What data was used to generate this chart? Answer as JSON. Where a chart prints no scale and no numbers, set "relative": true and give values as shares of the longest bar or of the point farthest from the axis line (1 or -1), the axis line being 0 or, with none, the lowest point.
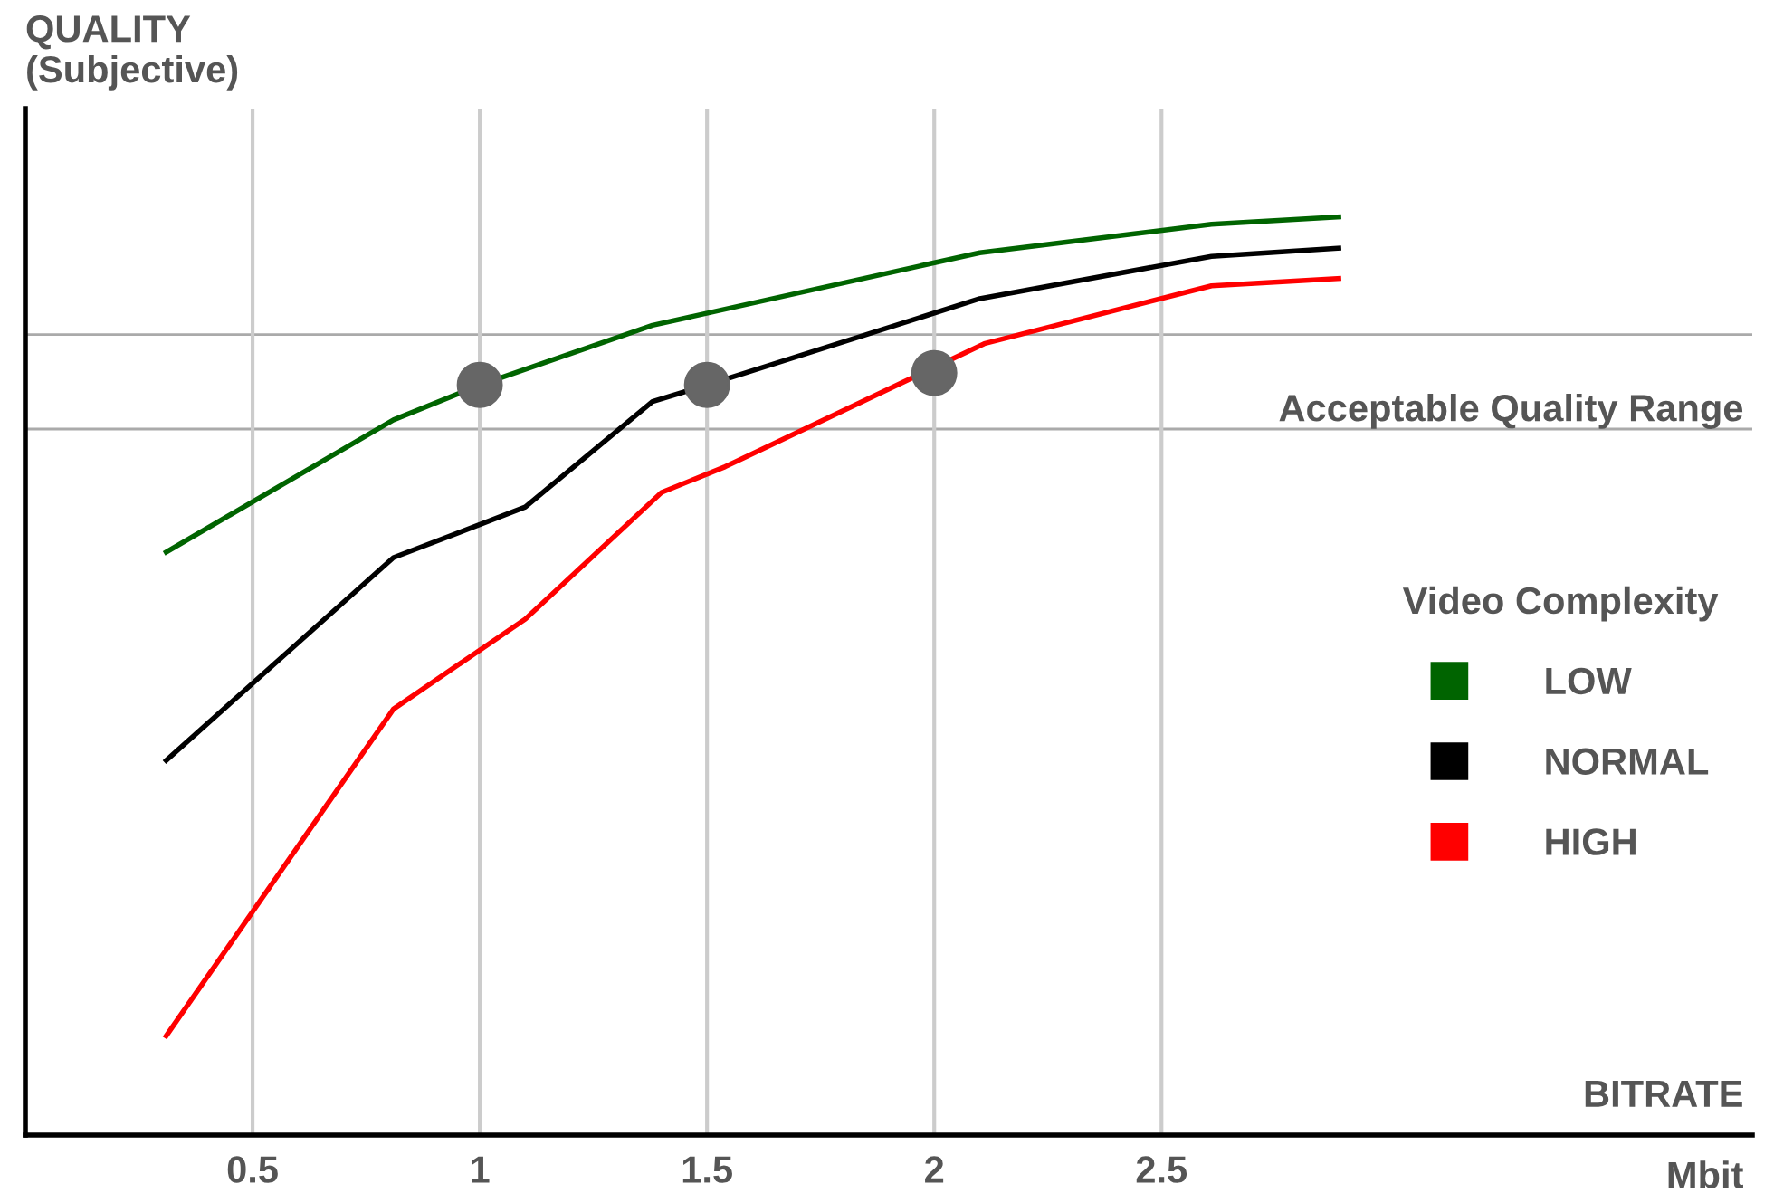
{
  "chart_data": {
    "type": "line",
    "xlabel": "BITRATE",
    "ylabel": "QUALITY\n(Subjective)",
    "legend_title": "Video Complexity",
    "relative": true,
    "xlim": [
      0,
      3.8
    ],
    "xticks": [
      0.5,
      1,
      1.5,
      2,
      2.5
    ],
    "grid": "x",
    "legend": "right",
    "annotations": [
      "Mbit"
    ],
    "ref_lines": [
      {
        "axis": "y",
        "value": 0.872,
        "color": "#aaaaaa"
      },
      {
        "axis": "y",
        "value": 0.769,
        "label": "Acceptable Quality Range",
        "color": "#aaaaaa"
      }
    ],
    "series": [
      {
        "name": "LOW",
        "color": "#006400",
        "x": [
          0.31,
          0.81,
          1.0,
          1.38,
          2.1,
          2.61,
          2.89
        ],
        "values": [
          0.635,
          0.779,
          0.817,
          0.882,
          0.961,
          0.992,
          1
        ]
      },
      {
        "name": "NORMAL",
        "color": "#000000",
        "x": [
          0.31,
          0.81,
          1.1,
          1.38,
          1.5,
          2.1,
          2.61,
          2.89
        ],
        "values": [
          0.408,
          0.629,
          0.684,
          0.799,
          0.817,
          0.911,
          0.957,
          0.966
        ]
      },
      {
        "name": "HIGH",
        "color": "#ff0000",
        "x": [
          0.31,
          0.81,
          1.1,
          1.4,
          1.54,
          2.11,
          2.61,
          2.89
        ],
        "values": [
          0.108,
          0.464,
          0.562,
          0.7,
          0.728,
          0.862,
          0.925,
          0.933
        ]
      },
      {
        "type": "scatter",
        "color": "#666666",
        "marker": "circle",
        "x": [
          1,
          1.5,
          2
        ],
        "values": [
          0.817,
          0.817,
          0.83
        ]
      }
    ]
  }
}
